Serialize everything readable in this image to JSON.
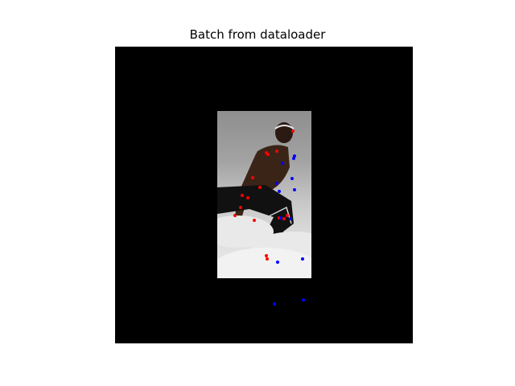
{
  "figure": {
    "title": "Batch from dataloader"
  },
  "image": {
    "subject": "person-crouching-mid-jump",
    "background": "black padding around cropped photo"
  },
  "keypoint_colors": {
    "ground_truth_or_set_a": "#ff0000",
    "prediction_or_set_b": "#0000ff"
  }
}
